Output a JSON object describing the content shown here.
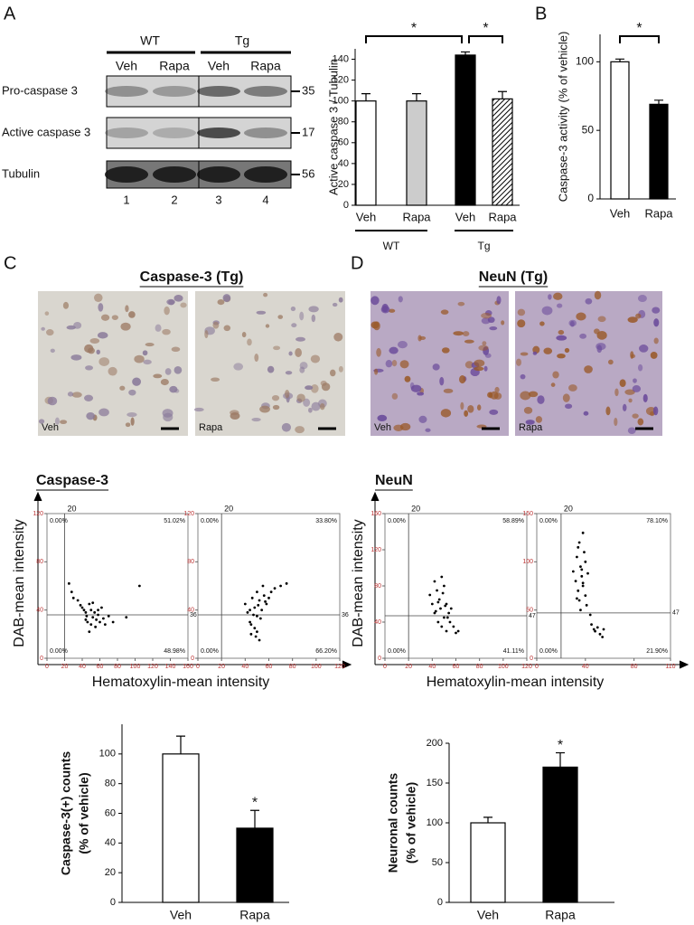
{
  "panel_labels": [
    "A",
    "B",
    "C",
    "D"
  ],
  "blot": {
    "group_labels": [
      "WT",
      "Tg"
    ],
    "lane_treatments": [
      "Veh",
      "Rapa",
      "Veh",
      "Rapa"
    ],
    "rows": [
      {
        "label": "Pro-caspase 3",
        "mw": "35"
      },
      {
        "label": "Active caspase 3",
        "mw": "17"
      },
      {
        "label": "Tubulin",
        "mw": "56"
      }
    ],
    "lane_numbers": [
      "1",
      "2",
      "3",
      "4"
    ]
  },
  "micrographs": [
    {
      "title": "Caspase-3 (Tg)",
      "images": [
        "Veh",
        "Rapa"
      ]
    },
    {
      "title": "NeuN (Tg)",
      "images": [
        "Veh",
        "Rapa"
      ]
    }
  ],
  "scatter_panels": [
    {
      "title": "Caspase-3",
      "ylabel": "DAB-mean intensity",
      "xlabel": "Hematoxylin-mean intensity"
    },
    {
      "title": "NeuN",
      "ylabel": "DAB-mean intensity",
      "xlabel": "Hematoxylin-mean intensity"
    }
  ],
  "chart_data": [
    {
      "type": "bar",
      "ylabel": "Active caspase 3 / Tubulin",
      "categories": [
        "Veh",
        "Rapa",
        "Veh",
        "Rapa"
      ],
      "group_labels": [
        "WT",
        "Tg"
      ],
      "values": [
        100,
        100,
        144,
        102
      ],
      "errors": [
        7,
        7,
        3,
        7
      ],
      "colors": [
        "#ffffff",
        "#cccccc",
        "#000000",
        "#ffffff"
      ],
      "hatch": [
        false,
        false,
        false,
        true
      ],
      "ylim": [
        0,
        150
      ],
      "yticks": [
        0,
        20,
        40,
        60,
        80,
        100,
        120,
        140
      ],
      "annotations": [
        "*",
        "*"
      ]
    },
    {
      "type": "bar",
      "ylabel": "Caspase-3 activity (% of vehicle)",
      "categories": [
        "Veh",
        "Rapa"
      ],
      "values": [
        100,
        69
      ],
      "errors": [
        2,
        3
      ],
      "colors": [
        "#ffffff",
        "#000000"
      ],
      "ylim": [
        0,
        120
      ],
      "yticks": [
        0,
        50,
        100
      ],
      "annotations": [
        "*"
      ]
    },
    {
      "type": "scatter",
      "x": [
        25,
        28,
        30,
        35,
        38,
        40,
        42,
        44,
        45,
        46,
        48,
        50,
        50,
        52,
        54,
        55,
        56,
        58,
        60,
        62,
        64,
        66,
        70,
        75,
        90,
        105,
        48,
        52,
        58,
        44
      ],
      "values": [
        62,
        55,
        50,
        48,
        44,
        42,
        40,
        38,
        35,
        30,
        45,
        40,
        28,
        34,
        38,
        26,
        32,
        36,
        30,
        42,
        33,
        28,
        35,
        30,
        34,
        60,
        22,
        46,
        40,
        32
      ],
      "xlim": [
        0,
        160
      ],
      "xticks": [
        0,
        20,
        40,
        60,
        80,
        100,
        120,
        140,
        160
      ],
      "ylim": [
        0,
        120
      ],
      "yticks": [
        0,
        40,
        80,
        120
      ],
      "quadrant_x": 20,
      "quadrant_y": 36,
      "quadrant_percentages": [
        "0.00%",
        "51.02%",
        "0.00%",
        "48.98%"
      ]
    },
    {
      "type": "scatter",
      "x": [
        40,
        42,
        44,
        45,
        46,
        48,
        48,
        50,
        50,
        52,
        52,
        54,
        55,
        56,
        58,
        60,
        62,
        65,
        70,
        75,
        45,
        50,
        53,
        47,
        57,
        49,
        44,
        51
      ],
      "values": [
        45,
        38,
        30,
        20,
        50,
        42,
        25,
        55,
        35,
        48,
        15,
        40,
        60,
        52,
        45,
        50,
        55,
        58,
        60,
        62,
        28,
        22,
        33,
        36,
        47,
        18,
        40,
        44
      ],
      "xlim": [
        0,
        120
      ],
      "xticks": [
        0,
        20,
        40,
        60,
        80,
        100,
        120
      ],
      "ylim": [
        0,
        120
      ],
      "yticks": [
        0,
        40,
        80,
        120
      ],
      "quadrant_x": 20,
      "quadrant_y": 36,
      "quadrant_percentages": [
        "0.00%",
        "33.80%",
        "0.00%",
        "66.20%"
      ]
    },
    {
      "type": "scatter",
      "x": [
        38,
        40,
        42,
        42,
        44,
        45,
        46,
        47,
        48,
        48,
        50,
        50,
        52,
        52,
        54,
        55,
        56,
        58,
        60,
        62,
        45,
        49,
        53,
        43,
        51
      ],
      "values": [
        70,
        60,
        85,
        50,
        75,
        40,
        65,
        55,
        90,
        35,
        45,
        80,
        60,
        30,
        50,
        40,
        55,
        35,
        28,
        30,
        62,
        72,
        45,
        52,
        58
      ],
      "xlim": [
        0,
        120
      ],
      "xticks": [
        0,
        20,
        40,
        60,
        80,
        100,
        120
      ],
      "ylim": [
        0,
        160
      ],
      "yticks": [
        0,
        40,
        80,
        120,
        160
      ],
      "quadrant_x": 20,
      "quadrant_y": 47,
      "quadrant_percentages": [
        "0.00%",
        "58.89%",
        "0.00%",
        "41.11%"
      ]
    },
    {
      "type": "scatter",
      "x": [
        30,
        32,
        33,
        34,
        35,
        35,
        36,
        37,
        38,
        38,
        39,
        40,
        40,
        41,
        42,
        44,
        36,
        34,
        45,
        47,
        48,
        50,
        52,
        54,
        55,
        38,
        33,
        37
      ],
      "values": [
        90,
        80,
        105,
        70,
        120,
        60,
        95,
        85,
        130,
        75,
        110,
        65,
        100,
        55,
        88,
        45,
        50,
        115,
        35,
        30,
        28,
        32,
        25,
        22,
        30,
        78,
        62,
        92
      ],
      "xlim": [
        0,
        110
      ],
      "xticks": [
        0,
        40,
        80,
        110
      ],
      "ylim": [
        0,
        150
      ],
      "yticks": [
        0,
        50,
        100,
        150
      ],
      "quadrant_x": 20,
      "quadrant_y": 47,
      "quadrant_percentages": [
        "0.00%",
        "78.10%",
        "0.00%",
        "21.90%"
      ]
    },
    {
      "type": "bar",
      "ylabel": [
        "Caspase-3(+) counts",
        "(% of vehicle)"
      ],
      "categories": [
        "Veh",
        "Rapa"
      ],
      "values": [
        100,
        50
      ],
      "errors": [
        12,
        12
      ],
      "colors": [
        "#ffffff",
        "#000000"
      ],
      "ylim": [
        0,
        120
      ],
      "yticks": [
        0,
        20,
        40,
        60,
        80,
        100
      ],
      "annotations": [
        "*"
      ]
    },
    {
      "type": "bar",
      "ylabel": [
        "Neuronal counts",
        "(% of vehicle)"
      ],
      "categories": [
        "Veh",
        "Rapa"
      ],
      "values": [
        100,
        170
      ],
      "errors": [
        7,
        18
      ],
      "colors": [
        "#ffffff",
        "#000000"
      ],
      "ylim": [
        0,
        200
      ],
      "yticks": [
        0,
        50,
        100,
        150,
        200
      ],
      "annotations": [
        "*"
      ]
    }
  ]
}
